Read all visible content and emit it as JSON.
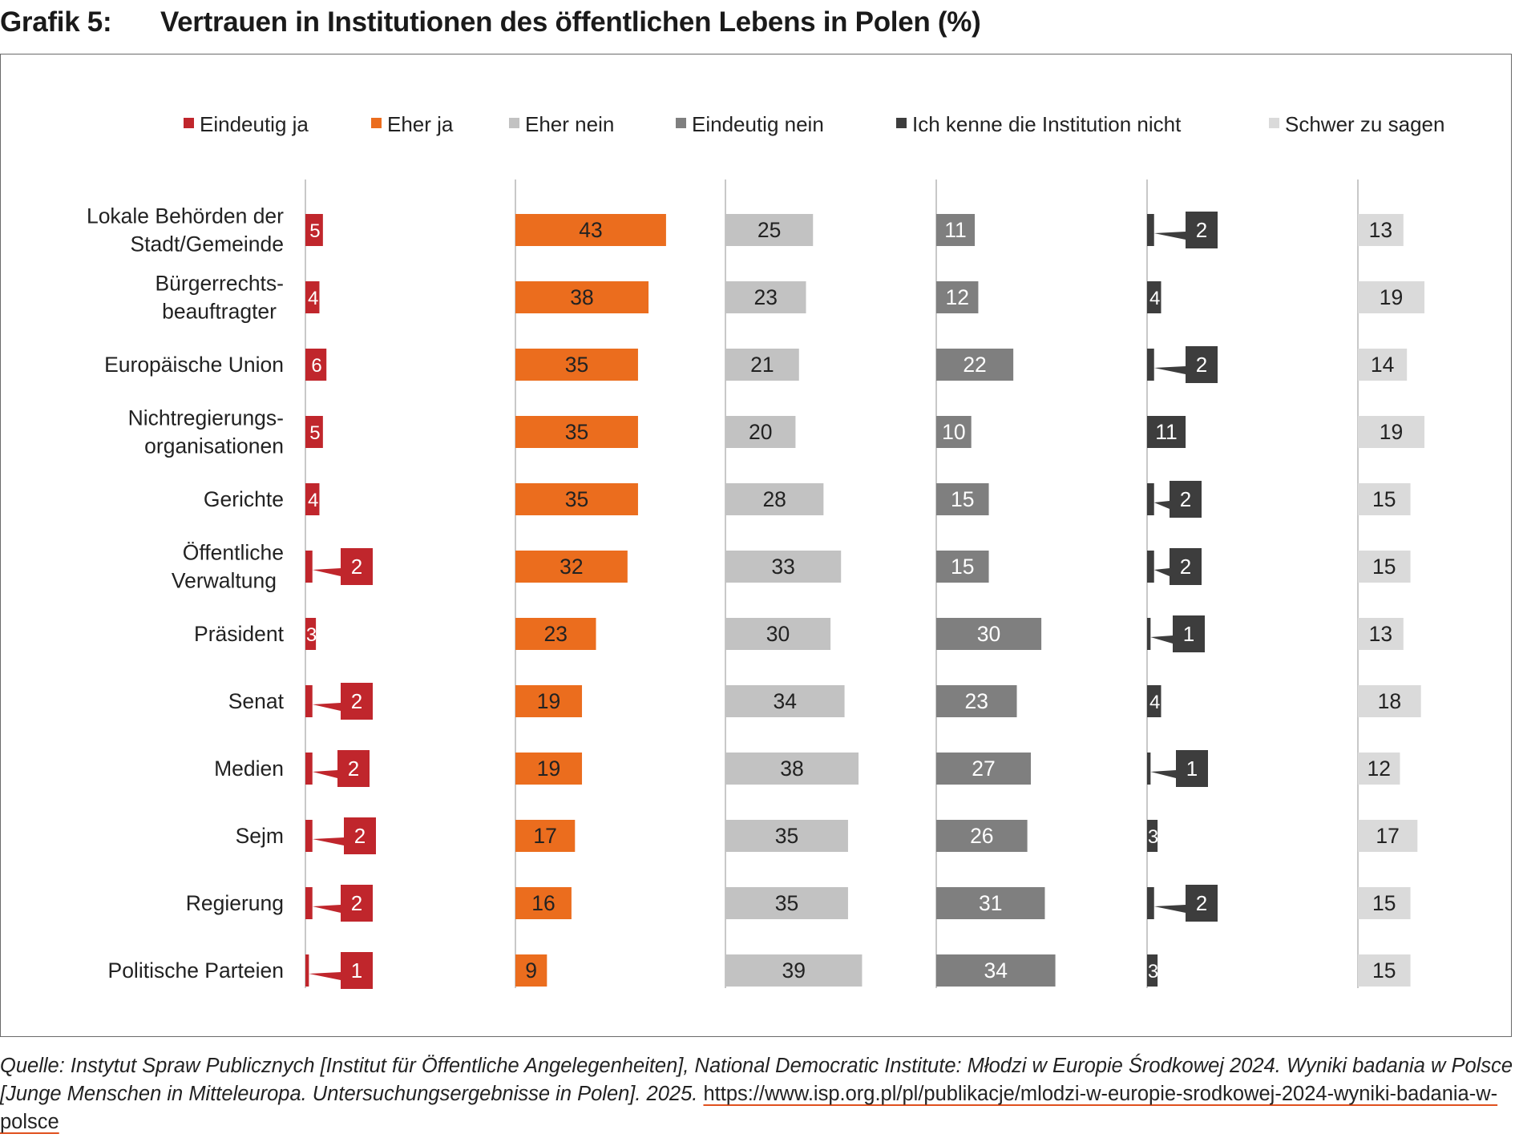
{
  "figure": {
    "label": "Grafik 5:",
    "title": "Vertrauen in Institutionen des öffentlichen Lebens in Polen (%)"
  },
  "source": {
    "text": "Quelle: Instytut Spraw Publicznych [Institut für Öffentliche Angelegenheiten], National Democratic Institute: Młodzi w Europie Środkowej 2024. Wyniki badania w Polsce [Junge Menschen in Mitteleuropa. Untersuchungsergebnisse in Polen]. 2025.",
    "url": "https://www.isp.org.pl/pl/publikacje/mlodzi-w-europie-srodkowej-2024-wyniki-badania-w-polsce"
  },
  "chart_data": {
    "type": "bar",
    "orientation": "horizontal",
    "layout": "small-multiples",
    "title": "Vertrauen in Institutionen des öffentlichen Lebens in Polen (%)",
    "unit": "%",
    "legend_position": "top",
    "categories": [
      "Lokale Behörden der Stadt/Gemeinde",
      "Bürgerrechtsbeauftragter",
      "Europäische Union",
      "Nichtregierungsorganisationen",
      "Gerichte",
      "Öffentliche Verwaltung",
      "Präsident",
      "Senat",
      "Medien",
      "Sejm",
      "Regierung",
      "Politische Parteien"
    ],
    "category_display": [
      [
        "Lokale Behörden der",
        "Stadt/Gemeinde"
      ],
      [
        "Bürgerrechts-",
        "beauftragter"
      ],
      [
        "Europäische Union"
      ],
      [
        "Nichtregierungs-",
        "organisationen"
      ],
      [
        "Gerichte"
      ],
      [
        "Öffentliche",
        "Verwaltung"
      ],
      [
        "Präsident"
      ],
      [
        "Senat"
      ],
      [
        "Medien"
      ],
      [
        "Sejm"
      ],
      [
        "Regierung"
      ],
      [
        "Politische Parteien"
      ]
    ],
    "series": [
      {
        "name": "Eindeutig ja",
        "color": "#c0262c",
        "label_color": "#ffffff",
        "values": [
          5,
          4,
          6,
          5,
          4,
          2,
          3,
          2,
          2,
          2,
          2,
          1
        ]
      },
      {
        "name": "Eher ja",
        "color": "#eb6d1e",
        "label_color": "#222222",
        "values": [
          43,
          38,
          35,
          35,
          35,
          32,
          23,
          19,
          19,
          17,
          16,
          9
        ]
      },
      {
        "name": "Eher nein",
        "color": "#c2c2c2",
        "label_color": "#222222",
        "values": [
          25,
          23,
          21,
          20,
          28,
          33,
          30,
          34,
          38,
          35,
          35,
          39
        ]
      },
      {
        "name": "Eindeutig nein",
        "color": "#7f7f7f",
        "label_color": "#ffffff",
        "values": [
          11,
          12,
          22,
          10,
          15,
          15,
          30,
          23,
          27,
          26,
          31,
          34
        ]
      },
      {
        "name": "Ich kenne die Institution nicht",
        "color": "#3d3d3d",
        "label_color": "#ffffff",
        "values": [
          2,
          4,
          2,
          11,
          2,
          2,
          1,
          4,
          1,
          3,
          2,
          3
        ]
      },
      {
        "name": "Schwer zu sagen",
        "color": "#dadada",
        "label_color": "#222222",
        "values": [
          13,
          19,
          14,
          19,
          15,
          15,
          13,
          18,
          12,
          17,
          15,
          15
        ]
      }
    ]
  }
}
